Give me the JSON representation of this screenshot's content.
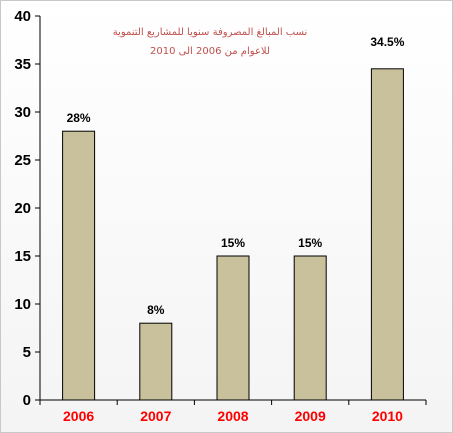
{
  "colors": {
    "bar_fill": "#c9c19c",
    "bar_stroke": "#000000",
    "x_tick_color": "#ff0000",
    "title_color": "#c0504d"
  },
  "chart_data": {
    "type": "bar",
    "title": "نسب المبالغ المصروفة سنويا للمشاريع التنموية",
    "subtitle": "للاعوام من 2006 الى 2010",
    "categories": [
      "2006",
      "2007",
      "2008",
      "2009",
      "2010"
    ],
    "values": [
      28,
      8,
      15,
      15,
      34.5
    ],
    "data_labels": [
      "28%",
      "8%",
      "15%",
      "15%",
      "34.5%"
    ],
    "ylim": [
      0,
      40
    ],
    "yticks": [
      0,
      5,
      10,
      15,
      20,
      25,
      30,
      35,
      40
    ],
    "xlabel": "",
    "ylabel": "",
    "grid": false,
    "legend": "none"
  }
}
